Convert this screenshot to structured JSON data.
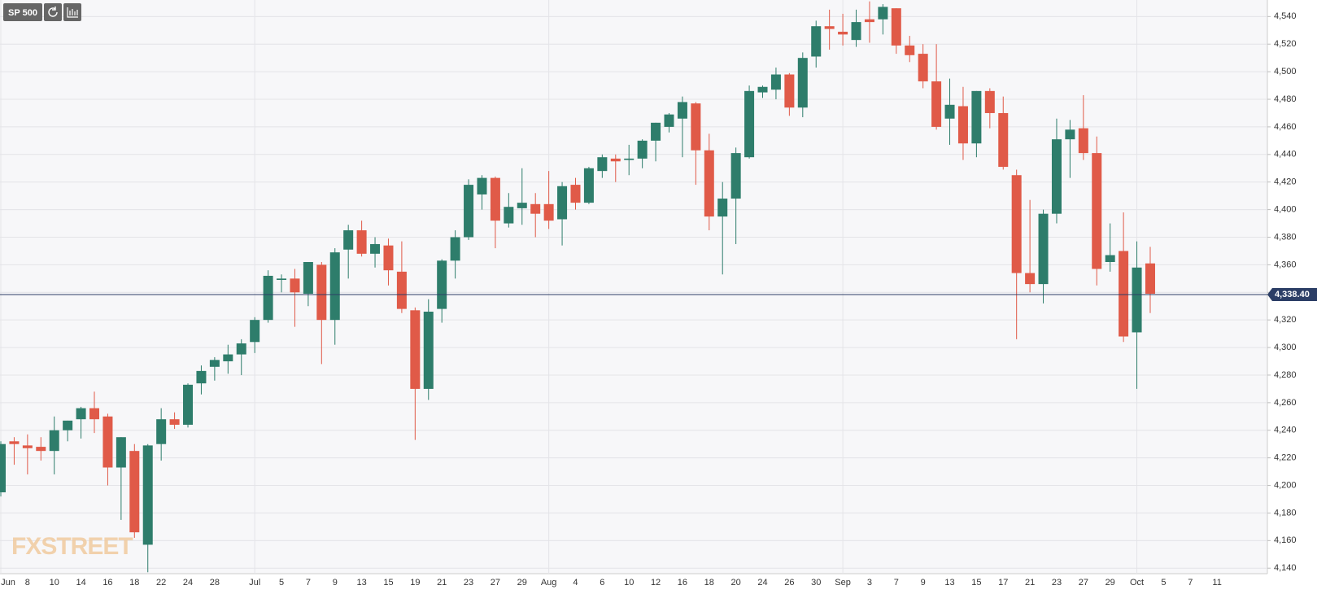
{
  "chart_data": {
    "type": "candlestick",
    "title": "SP 500",
    "watermark": "FXSTREET",
    "categories": [
      "Jun",
      null,
      "8",
      null,
      "10",
      null,
      "14",
      null,
      "16",
      null,
      "18",
      null,
      "22",
      null,
      "24",
      null,
      "28",
      null,
      null,
      "Jul",
      null,
      "5",
      null,
      "7",
      null,
      "9",
      null,
      "13",
      null,
      "15",
      null,
      "19",
      null,
      "21",
      null,
      "23",
      null,
      "27",
      null,
      "29",
      null,
      "Aug",
      null,
      "4",
      null,
      "6",
      null,
      "10",
      null,
      "12",
      null,
      "16",
      null,
      "18",
      null,
      "20",
      null,
      "24",
      null,
      "26",
      null,
      "30",
      null,
      "Sep",
      null,
      "3",
      null,
      "7",
      null,
      "9",
      null,
      "13",
      null,
      "15",
      null,
      "17",
      null,
      "21",
      null,
      "23",
      null,
      "27",
      null,
      "29",
      null,
      "Oct",
      null,
      "5",
      null,
      "7",
      null,
      "11"
    ],
    "open": [
      4195,
      4232,
      4229,
      4228,
      4225,
      4240,
      4248,
      4256,
      4250,
      4213,
      4225,
      4157,
      4230,
      4248,
      4244,
      4274,
      4286,
      4290,
      4295,
      4304,
      4320,
      4349,
      4350,
      4339,
      4360,
      4320,
      4371,
      4385,
      4368,
      4374,
      4355,
      4327,
      4270,
      4328,
      4363,
      4380,
      4411,
      4423,
      4390,
      4401,
      4404,
      4404,
      4393,
      4418,
      4405,
      4428,
      4437,
      4436,
      4437,
      4450,
      4460,
      4466,
      4477,
      4443,
      4395,
      4408,
      4438,
      4485,
      4487,
      4498,
      4474,
      4511,
      4533,
      4529,
      4523,
      4538,
      4538,
      4546,
      4519,
      4513,
      4493,
      4466,
      4475,
      4448,
      4486,
      4470,
      4425,
      4354,
      4346,
      4397,
      4451,
      4459,
      4441,
      4362,
      4370,
      4311,
      4361,
      null,
      null,
      null,
      null,
      null
    ],
    "high": [
      4232,
      4235,
      4237,
      4235,
      4250,
      4247,
      4257,
      4268,
      4252,
      4235,
      4230,
      4230,
      4256,
      4253,
      4274,
      4287,
      4293,
      4302,
      4306,
      4322,
      4356,
      4353,
      4357,
      4362,
      4362,
      4372,
      4389,
      4392,
      4380,
      4379,
      4377,
      4329,
      4335,
      4364,
      4385,
      4422,
      4425,
      4424,
      4412,
      4430,
      4412,
      4428,
      4420,
      4423,
      4431,
      4440,
      4440,
      4447,
      4451,
      4463,
      4470,
      4482,
      4478,
      4455,
      4420,
      4445,
      4490,
      4490,
      4503,
      4499,
      4514,
      4537,
      4545,
      4542,
      4545,
      4551,
      4549,
      4546,
      4526,
      4520,
      4520,
      4495,
      4489,
      4486,
      4488,
      4482,
      4429,
      4407,
      4400,
      4466,
      4465,
      4483,
      4453,
      4390,
      4398,
      4377,
      4373,
      null,
      null,
      null,
      null,
      null
    ],
    "low": [
      4192,
      4215,
      4208,
      4218,
      4208,
      4232,
      4234,
      4238,
      4200,
      4175,
      4162,
      4137,
      4218,
      4241,
      4242,
      4266,
      4276,
      4281,
      4280,
      4296,
      4318,
      4340,
      4315,
      4330,
      4288,
      4302,
      4350,
      4366,
      4358,
      4345,
      4325,
      4233,
      4262,
      4318,
      4350,
      4378,
      4400,
      4372,
      4387,
      4389,
      4380,
      4386,
      4374,
      4400,
      4404,
      4423,
      4420,
      4425,
      4430,
      4435,
      4456,
      4438,
      4418,
      4385,
      4353,
      4375,
      4437,
      4481,
      4480,
      4468,
      4467,
      4503,
      4516,
      4519,
      4518,
      4521,
      4527,
      4513,
      4507,
      4488,
      4458,
      4447,
      4436,
      4438,
      4459,
      4429,
      4306,
      4340,
      4332,
      4390,
      4423,
      4436,
      4345,
      4355,
      4304,
      4270,
      4325,
      null,
      null,
      null,
      null,
      null
    ],
    "close": [
      4230,
      4230,
      4227,
      4225,
      4240,
      4247,
      4256,
      4248,
      4213,
      4235,
      4166,
      4229,
      4248,
      4244,
      4273,
      4283,
      4291,
      4295,
      4303,
      4320,
      4352,
      4350,
      4340,
      4362,
      4320,
      4369,
      4385,
      4368,
      4375,
      4356,
      4328,
      4270,
      4326,
      4363,
      4380,
      4418,
      4423,
      4392,
      4402,
      4405,
      4397,
      4392,
      4417,
      4405,
      4430,
      4438,
      4435,
      4437,
      4450,
      4463,
      4469,
      4478,
      4443,
      4395,
      4408,
      4441,
      4486,
      4489,
      4498,
      4474,
      4510,
      4533,
      4531,
      4527,
      4536,
      4536,
      4547,
      4519,
      4512,
      4493,
      4460,
      4476,
      4448,
      4486,
      4470,
      4431,
      4354,
      4346,
      4397,
      4451,
      4458,
      4441,
      4357,
      4367,
      4308,
      4358,
      4339,
      null,
      null,
      null,
      null,
      null
    ],
    "up_color": "#2e7d6b",
    "down_color": "#e05a48",
    "last_price": {
      "value": 4338.4,
      "label": "4,338.40"
    },
    "last_price_color": "#2c3e66",
    "ylim": [
      4136,
      4552
    ],
    "yticks": [
      {
        "value": 4140,
        "label": "4,140"
      },
      {
        "value": 4160,
        "label": "4,160"
      },
      {
        "value": 4180,
        "label": "4,180"
      },
      {
        "value": 4200,
        "label": "4,200"
      },
      {
        "value": 4220,
        "label": "4,220"
      },
      {
        "value": 4240,
        "label": "4,240"
      },
      {
        "value": 4260,
        "label": "4,260"
      },
      {
        "value": 4280,
        "label": "4,280"
      },
      {
        "value": 4300,
        "label": "4,300"
      },
      {
        "value": 4320,
        "label": "4,320"
      },
      {
        "value": 4340,
        "label": "4,340"
      },
      {
        "value": 4360,
        "label": "4,360"
      },
      {
        "value": 4380,
        "label": "4,380"
      },
      {
        "value": 4400,
        "label": "4,400"
      },
      {
        "value": 4420,
        "label": "4,420"
      },
      {
        "value": 4440,
        "label": "4,440"
      },
      {
        "value": 4460,
        "label": "4,460"
      },
      {
        "value": 4480,
        "label": "4,480"
      },
      {
        "value": 4500,
        "label": "4,500"
      },
      {
        "value": 4520,
        "label": "4,520"
      },
      {
        "value": 4540,
        "label": "4,540"
      }
    ],
    "grid": true
  }
}
